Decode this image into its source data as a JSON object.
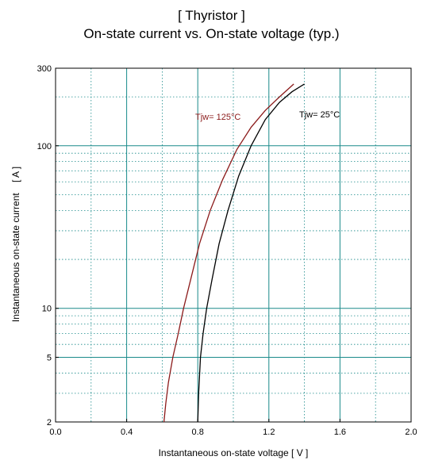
{
  "chart_data": {
    "type": "line",
    "title": "[ Thyristor ]",
    "subtitle": "On-state current  vs.  On-state voltage  (typ.)",
    "xlabel": "Instantaneous on-state voltage   [ V ]",
    "ylabel": "Instantaneous on-state current    [ A ]",
    "xlim": [
      0.0,
      2.0
    ],
    "ylim": [
      2,
      300
    ],
    "yscale": "log",
    "grid": true,
    "x_ticks": [
      "0.0",
      "0.4",
      "0.8",
      "1.2",
      "1.6",
      "2.0"
    ],
    "x_tick_values": [
      0.0,
      0.4,
      0.8,
      1.2,
      1.6,
      2.0
    ],
    "y_ticks": [
      "2",
      "5",
      "10",
      "100",
      "300"
    ],
    "y_tick_values": [
      2,
      5,
      10,
      100,
      300
    ],
    "series": [
      {
        "name": "Tjw= 125°C",
        "color": "#8b1a1a",
        "x": [
          0.61,
          0.62,
          0.635,
          0.66,
          0.69,
          0.72,
          0.76,
          0.81,
          0.87,
          0.94,
          1.02,
          1.1,
          1.18,
          1.26,
          1.34
        ],
        "y": [
          2,
          2.6,
          3.5,
          5,
          7,
          10,
          15,
          25,
          40,
          62,
          95,
          130,
          165,
          200,
          240
        ]
      },
      {
        "name": "Tjw= 25°C",
        "color": "#000000",
        "x": [
          0.8,
          0.805,
          0.815,
          0.83,
          0.85,
          0.88,
          0.92,
          0.97,
          1.03,
          1.1,
          1.18,
          1.26,
          1.33,
          1.4
        ],
        "y": [
          2,
          3,
          5,
          7,
          10,
          15,
          25,
          40,
          65,
          100,
          145,
          185,
          215,
          240
        ]
      }
    ]
  }
}
